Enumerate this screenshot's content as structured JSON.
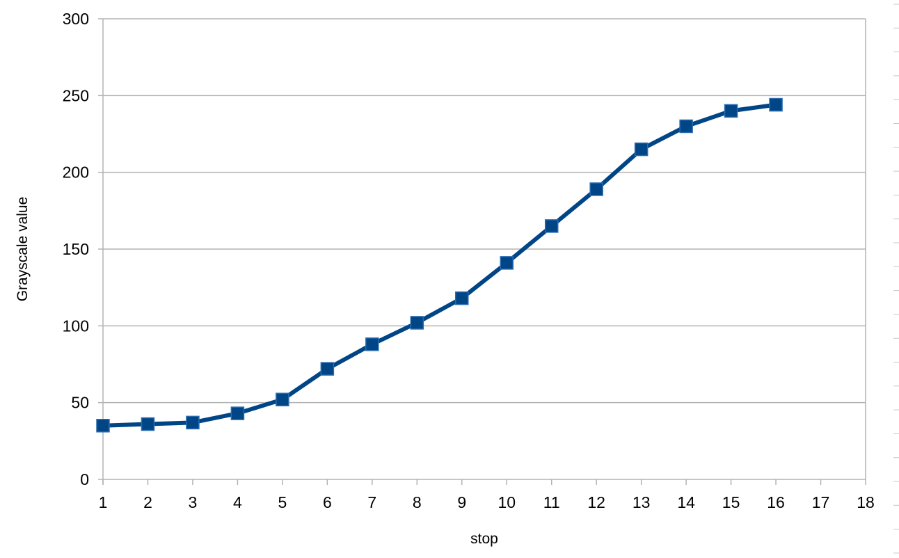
{
  "chart_data": {
    "type": "line",
    "title": "",
    "xlabel": "stop",
    "ylabel": "Grayscale value",
    "x": [
      1,
      2,
      3,
      4,
      5,
      6,
      7,
      8,
      9,
      10,
      11,
      12,
      13,
      14,
      15,
      16
    ],
    "series": [
      {
        "values": [
          35,
          36,
          37,
          43,
          52,
          72,
          88,
          102,
          118,
          141,
          165,
          189,
          215,
          230,
          240,
          244
        ]
      }
    ],
    "xlim": [
      1,
      18
    ],
    "ylim": [
      0,
      300
    ],
    "x_ticks": [
      "1",
      "2",
      "3",
      "4",
      "5",
      "6",
      "7",
      "8",
      "9",
      "10",
      "11",
      "12",
      "13",
      "14",
      "15",
      "16",
      "17",
      "18"
    ],
    "y_ticks": [
      "0",
      "50",
      "100",
      "150",
      "200",
      "250",
      "300"
    ],
    "grid": "horizontal",
    "legend": "none",
    "marker": "square",
    "line_color": "#004586",
    "marker_color": "#004586",
    "grid_color": "#b3b3b3"
  }
}
